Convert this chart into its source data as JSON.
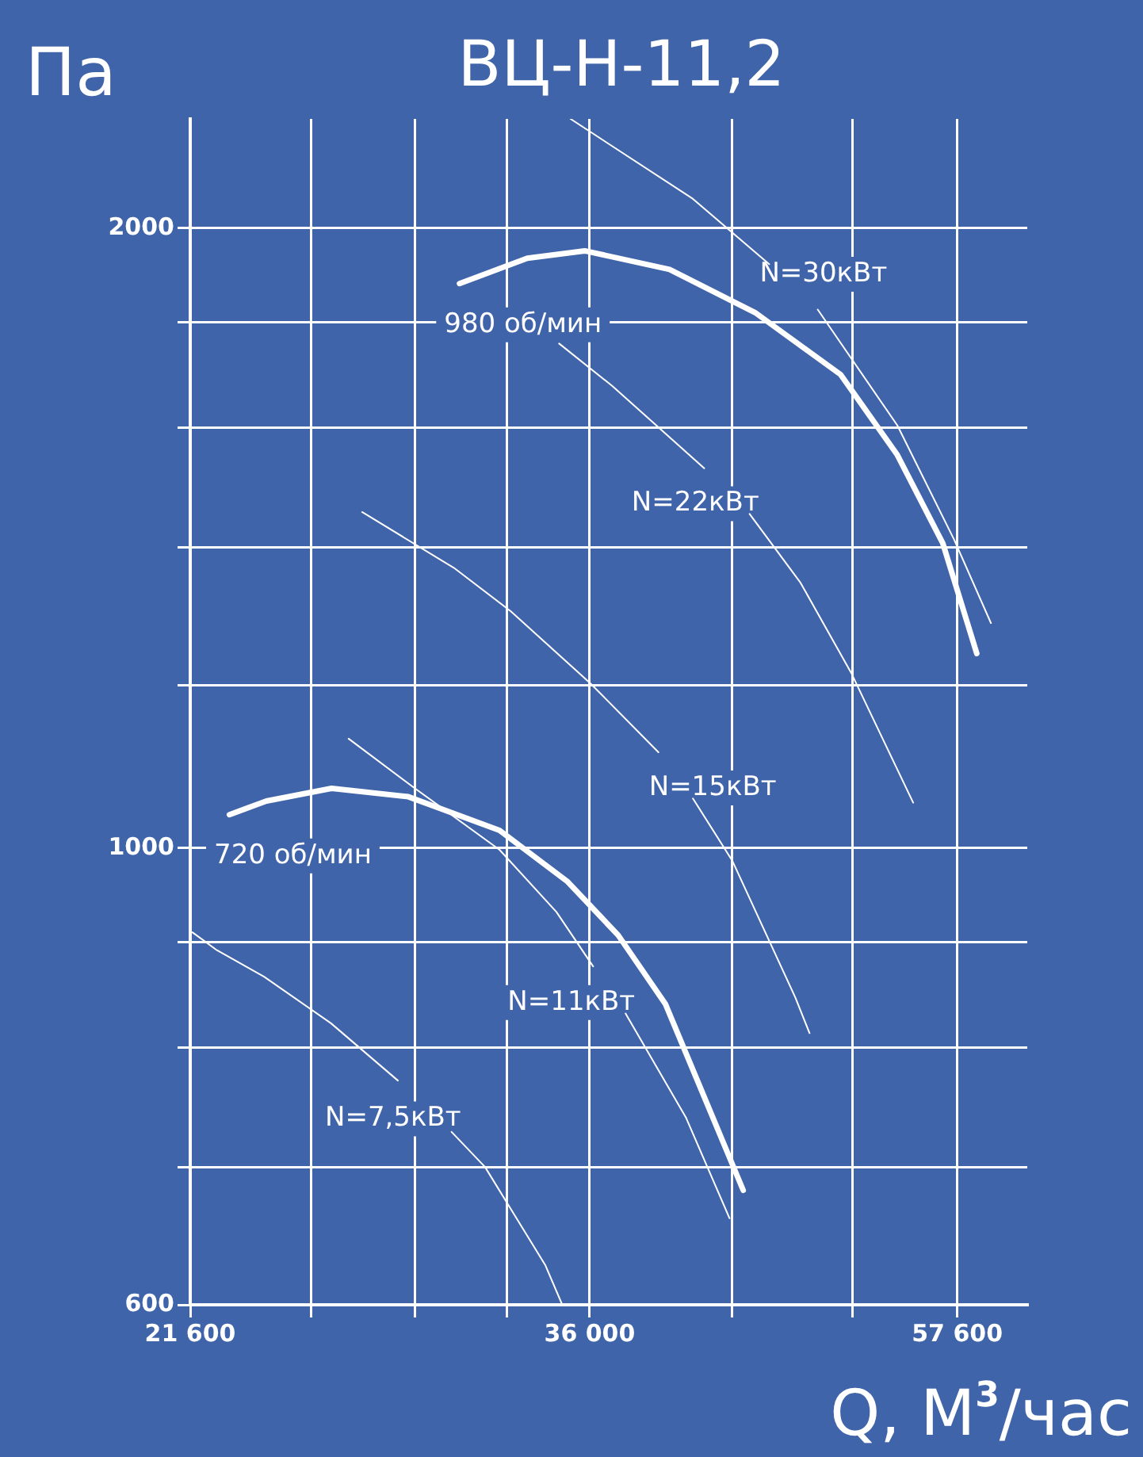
{
  "chart_data": {
    "type": "line",
    "title": "ВЦ-Н-11,2",
    "xlabel": "Q, М$^{3}$/час",
    "ylabel": "Па",
    "log": "xy",
    "grid": true,
    "marker": "none",
    "xlim": [
      21600,
      63000
    ],
    "ylim": [
      600,
      2260
    ],
    "xticks": [
      {
        "value": 21600,
        "label": "21 600"
      },
      {
        "value": 25200,
        "label": null
      },
      {
        "value": 28800,
        "label": null
      },
      {
        "value": 32400,
        "label": null
      },
      {
        "value": 36000,
        "label": "36 000"
      },
      {
        "value": 43200,
        "label": null
      },
      {
        "value": 50400,
        "label": null
      },
      {
        "value": 57600,
        "label": "57 600"
      }
    ],
    "yticks": [
      600,
      {
        "value": 700,
        "label": null
      },
      {
        "value": 800,
        "label": null
      },
      {
        "value": 900,
        "label": null
      },
      1000,
      {
        "value": 1200,
        "label": null
      },
      {
        "value": 1400,
        "label": null
      },
      {
        "value": 1600,
        "label": null
      },
      {
        "value": 1800,
        "label": null
      },
      2000
    ],
    "series": [
      {
        "name": "980 об/мин",
        "color": "#ffffff",
        "x": [
          30480,
          33240,
          35770,
          39870,
          44480,
          49620,
          53330,
          56550,
          59060
        ],
        "values": [
          1880,
          1934,
          1950,
          1910,
          1820,
          1698,
          1553,
          1406,
          1243
        ]
      },
      {
        "name": "720 об/мин",
        "color": "#ffffff",
        "x": [
          22710,
          23810,
          25880,
          28550,
          32080,
          35000,
          37340,
          39660,
          41090,
          43810
        ],
        "values": [
          1038,
          1054,
          1069,
          1059,
          1020,
          963,
          907,
          840,
          780,
          682
        ]
      },
      {
        "name": "N=30кВт",
        "color": "#ffffff",
        "x": [
          35130,
          41070,
          45290,
          46700,
          48190,
          53360,
          57370,
          60140
        ],
        "values": [
          2260,
          2067,
          1921,
          null,
          1826,
          1604,
          1412,
          1286
        ]
      },
      {
        "name": "N=22кВт",
        "color": "#ffffff",
        "x": [
          34620,
          37070,
          41680,
          42900,
          44170,
          47150,
          50330,
          54450
        ],
        "values": [
          1758,
          1676,
          1529,
          null,
          1453,
          1345,
          1215,
          1052
        ]
      },
      {
        "name": "N=15кВт",
        "color": "#ffffff",
        "x": [
          26910,
          30260,
          32550,
          36040,
          39310,
          40200,
          41080,
          43200,
          46830,
          47690
        ],
        "values": [
          1456,
          1368,
          1303,
          1202,
          1113,
          null,
          1057,
          986,
          846,
          813
        ]
      },
      {
        "name": "N=11кВт",
        "color": "#ffffff",
        "x": [
          26450,
          28750,
          32080,
          34500,
          36160,
          36900,
          37690,
          40710,
          43050
        ],
        "values": [
          1130,
          1070,
          998,
          931,
          876,
          null,
          831,
          740,
          661
        ]
      },
      {
        "name": "N=7,5кВт",
        "color": "#ffffff",
        "x": [
          21660,
          22350,
          23740,
          25860,
          28170,
          29100,
          30170,
          31490,
          34020,
          34760
        ],
        "values": [
          910,
          892,
          866,
          822,
          771,
          null,
          728,
          700,
          627,
          600
        ]
      }
    ]
  }
}
